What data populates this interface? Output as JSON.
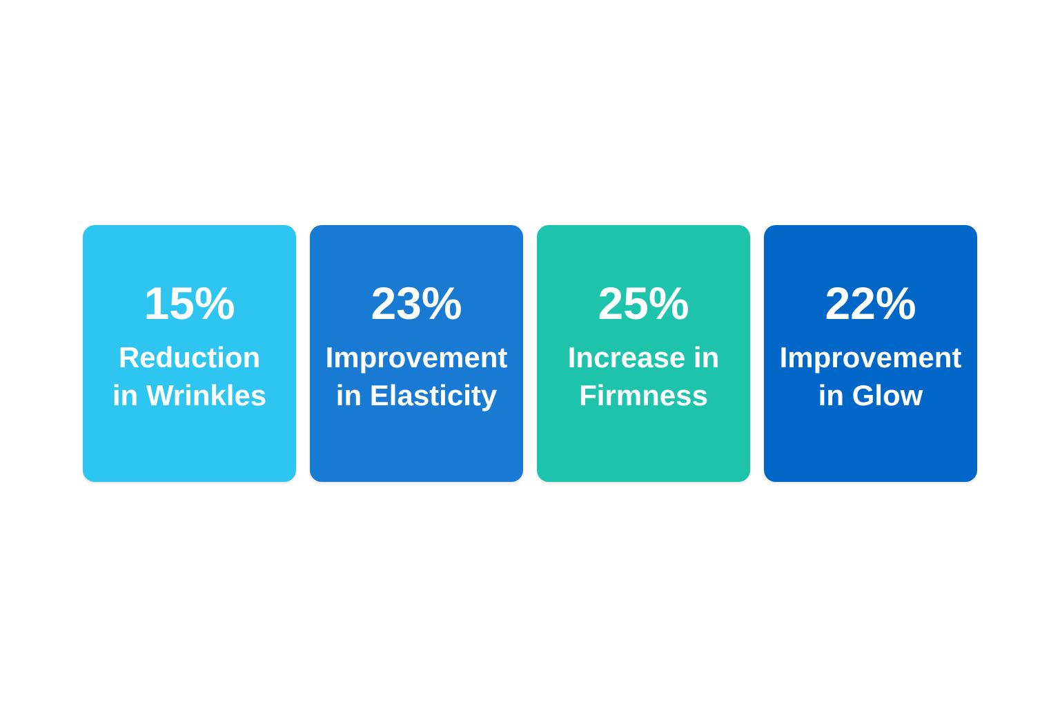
{
  "chart_data": {
    "type": "table",
    "title": "",
    "categories": [
      "Reduction in Wrinkles",
      "Improvement in Elasticity",
      "Increase in Firmness",
      "Improvement in Glow"
    ],
    "values": [
      15,
      23,
      25,
      22
    ],
    "unit": "%",
    "colors": [
      "#2EC6F0",
      "#187AD2",
      "#1EC3AC",
      "#0066C8"
    ],
    "layout": "four rounded stat cards in a horizontal row, centered on white background, white bold text"
  },
  "cards": [
    {
      "value": "15%",
      "line1": "Reduction",
      "line2": "in Wrinkles",
      "color": "#2EC6F0"
    },
    {
      "value": "23%",
      "line1": "Improvement",
      "line2": "in Elasticity",
      "color": "#187AD2"
    },
    {
      "value": "25%",
      "line1": "Increase in",
      "line2": "Firmness",
      "color": "#1EC3AC"
    },
    {
      "value": "22%",
      "line1": "Improvement",
      "line2": "in Glow",
      "color": "#0066C8"
    }
  ]
}
